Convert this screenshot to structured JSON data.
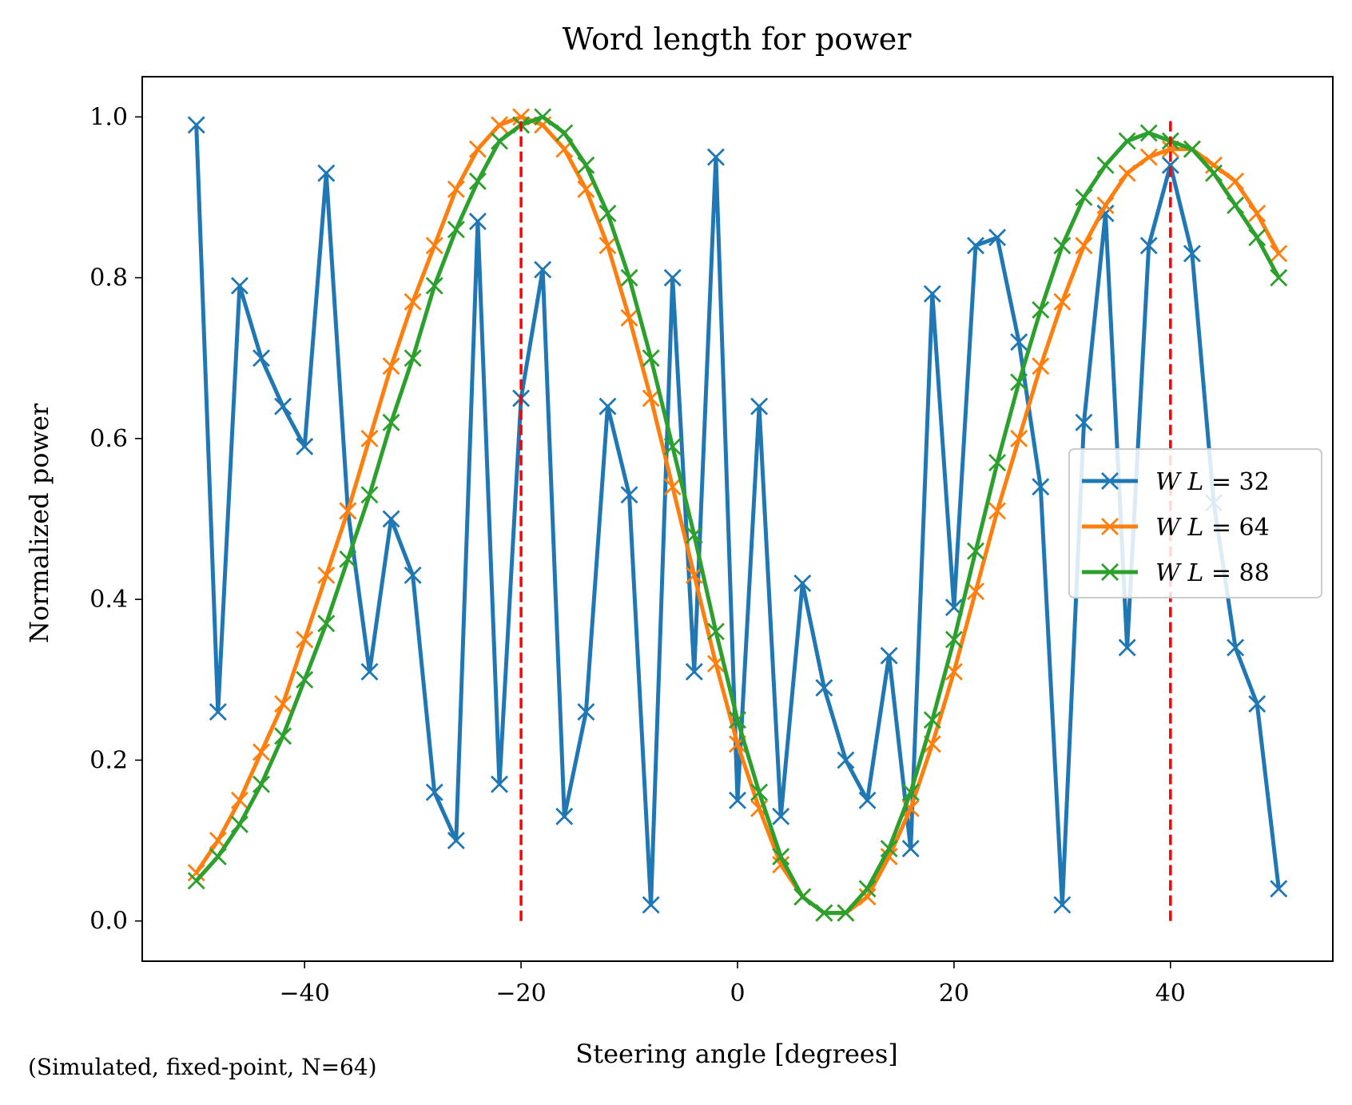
{
  "chart_data": {
    "type": "line",
    "title": "Word length for power",
    "xlabel": "Steering angle [degrees]",
    "ylabel": "Normalized power",
    "xlim": [
      -55,
      55
    ],
    "ylim": [
      -0.05,
      1.05
    ],
    "xticks": [
      -40,
      -20,
      0,
      20,
      40
    ],
    "xtick_labels": [
      "−40",
      "−20",
      "0",
      "20",
      "40"
    ],
    "yticks": [
      0.0,
      0.2,
      0.4,
      0.6,
      0.8,
      1.0
    ],
    "ytick_labels": [
      "0.0",
      "0.2",
      "0.4",
      "0.6",
      "0.8",
      "1.0"
    ],
    "grid": false,
    "legend_position": "center-right",
    "marker": "x",
    "x": [
      -50,
      -48,
      -46,
      -44,
      -42,
      -40,
      -38,
      -36,
      -34,
      -32,
      -30,
      -28,
      -26,
      -24,
      -22,
      -20,
      -18,
      -16,
      -14,
      -12,
      -10,
      -8,
      -6,
      -4,
      -2,
      0,
      2,
      4,
      6,
      8,
      10,
      12,
      14,
      16,
      18,
      20,
      22,
      24,
      26,
      28,
      30,
      32,
      34,
      36,
      38,
      40,
      42,
      44,
      46,
      48,
      50
    ],
    "series": [
      {
        "name": "WL = 32",
        "legend_prefix": "W L",
        "legend_value": "32",
        "color": "#1f77b4",
        "values": [
          0.99,
          0.26,
          0.79,
          0.7,
          0.64,
          0.59,
          0.93,
          0.51,
          0.31,
          0.5,
          0.43,
          0.16,
          0.1,
          0.87,
          0.17,
          0.65,
          0.81,
          0.13,
          0.26,
          0.64,
          0.53,
          0.02,
          0.8,
          0.31,
          0.95,
          0.15,
          0.64,
          0.13,
          0.42,
          0.29,
          0.2,
          0.15,
          0.33,
          0.09,
          0.78,
          0.39,
          0.84,
          0.85,
          0.72,
          0.54,
          0.02,
          0.62,
          0.88,
          0.34,
          0.84,
          0.94,
          0.83,
          0.52,
          0.34,
          0.27,
          0.04
        ]
      },
      {
        "name": "WL = 64",
        "legend_prefix": "W L",
        "legend_value": "64",
        "color": "#ff7f0e",
        "values": [
          0.06,
          0.1,
          0.15,
          0.21,
          0.27,
          0.35,
          0.43,
          0.51,
          0.6,
          0.69,
          0.77,
          0.84,
          0.91,
          0.96,
          0.99,
          1.0,
          0.99,
          0.96,
          0.91,
          0.84,
          0.75,
          0.65,
          0.54,
          0.43,
          0.32,
          0.22,
          0.14,
          0.07,
          0.03,
          0.01,
          0.01,
          0.03,
          0.08,
          0.14,
          0.22,
          0.31,
          0.41,
          0.51,
          0.6,
          0.69,
          0.77,
          0.84,
          0.89,
          0.93,
          0.95,
          0.96,
          0.96,
          0.94,
          0.92,
          0.88,
          0.83
        ]
      },
      {
        "name": "WL = 88",
        "legend_prefix": "W L",
        "legend_value": "88",
        "color": "#2ca02c",
        "values": [
          0.05,
          0.08,
          0.12,
          0.17,
          0.23,
          0.3,
          0.37,
          0.45,
          0.53,
          0.62,
          0.7,
          0.79,
          0.86,
          0.92,
          0.97,
          0.99,
          1.0,
          0.98,
          0.94,
          0.88,
          0.8,
          0.7,
          0.59,
          0.48,
          0.36,
          0.25,
          0.16,
          0.08,
          0.03,
          0.01,
          0.01,
          0.04,
          0.09,
          0.16,
          0.25,
          0.35,
          0.46,
          0.57,
          0.67,
          0.76,
          0.84,
          0.9,
          0.94,
          0.97,
          0.98,
          0.97,
          0.96,
          0.93,
          0.89,
          0.85,
          0.8
        ]
      }
    ],
    "vlines": [
      {
        "x": -20,
        "y_range": [
          0,
          1.0
        ],
        "color": "#ff0000",
        "style": "dashed"
      },
      {
        "x": 40,
        "y_range": [
          0,
          1.0
        ],
        "color": "#ff0000",
        "style": "dashed"
      }
    ],
    "footnote": "(Simulated, fixed-point, N=64)"
  }
}
